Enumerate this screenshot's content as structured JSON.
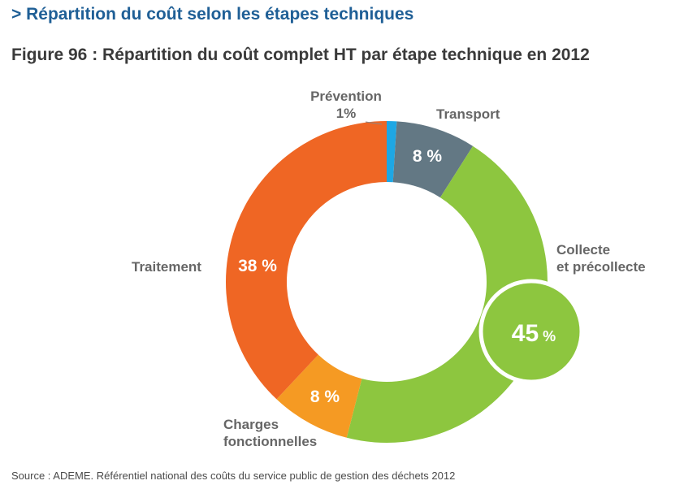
{
  "header": {
    "section_title": "> Répartition du coût selon les étapes techniques",
    "figure_title": "Figure 96 : Répartition du coût complet HT par étape technique en 2012"
  },
  "footer": {
    "source": "Source : ADEME. Référentiel national des coûts du service public de gestion des déchets 2012"
  },
  "chart_data": {
    "type": "pie",
    "donut": true,
    "title": "Figure 96 : Répartition du coût complet HT par étape technique en 2012",
    "unit": "%",
    "slices": [
      {
        "name": "Prévention",
        "value": 1,
        "value_label": "1%",
        "color": "#1ea7e4",
        "label_lines": [
          "Prévention",
          "1%"
        ]
      },
      {
        "name": "Transport",
        "value": 8,
        "value_label": "8 %",
        "color": "#637884",
        "label_lines": [
          "Transport"
        ]
      },
      {
        "name": "Collecte et précollecte",
        "value": 45,
        "value_label": "45 %",
        "color": "#8dc63f",
        "label_lines": [
          "Collecte",
          "et précollecte"
        ],
        "highlighted": true
      },
      {
        "name": "Charges fonctionnelles",
        "value": 8,
        "value_label": "8 %",
        "color": "#f59a23",
        "label_lines": [
          "Charges",
          "fonctionnelles"
        ]
      },
      {
        "name": "Traitement",
        "value": 38,
        "value_label": "38 %",
        "color": "#ef6624",
        "label_lines": [
          "Traitement"
        ]
      }
    ]
  }
}
